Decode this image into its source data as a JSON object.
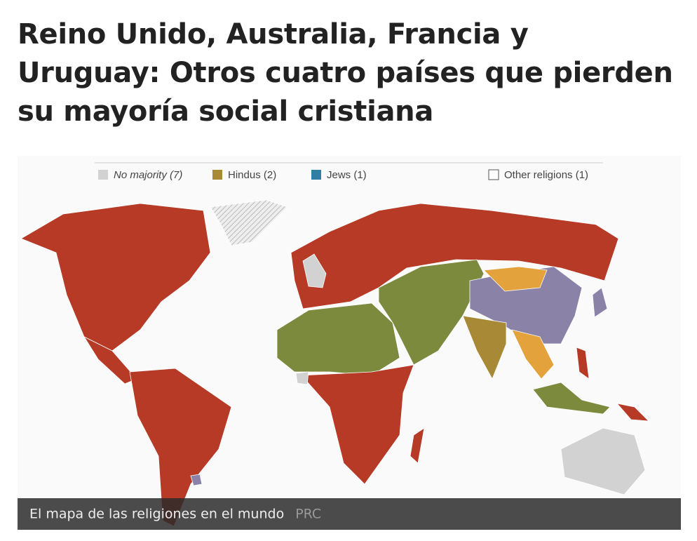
{
  "header": {
    "title_lines": [
      "Reino Unido, Australia, Francia y",
      "Uruguay: Otros cuatro países que pierden",
      "su mayoría social cristiana"
    ]
  },
  "figure": {
    "legend": [
      {
        "label": "No majority (7)",
        "color": "#d2d2d2"
      },
      {
        "label": "Hindus (2)",
        "color": "#a88a36"
      },
      {
        "label": "Jews (1)",
        "color": "#2e7fa3"
      },
      {
        "label": "Other religions (1)",
        "color": "#ffffff"
      }
    ],
    "caption": {
      "text": "El mapa de las religiones en el mundo",
      "credit": "PRC"
    }
  }
}
